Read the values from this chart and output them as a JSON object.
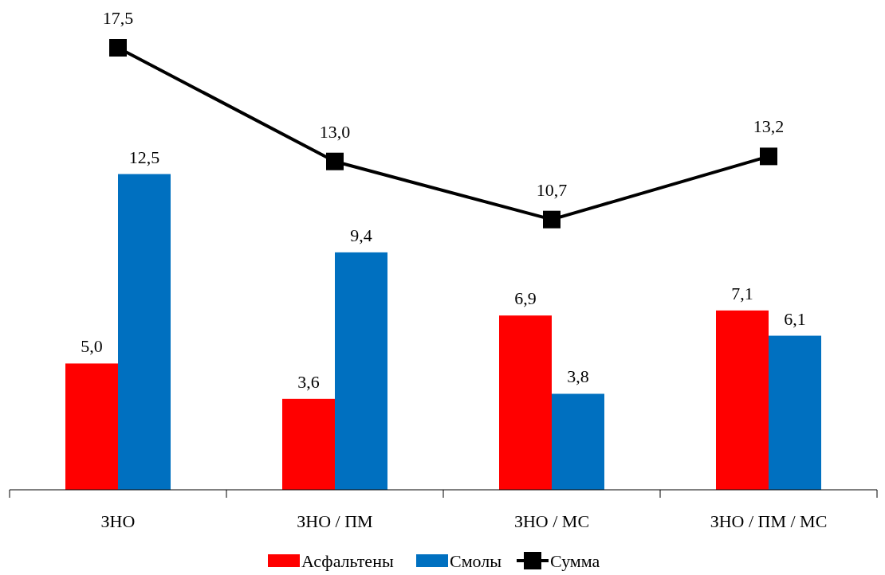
{
  "chart_data": {
    "type": "bar",
    "categories": [
      "ЗНО",
      "ЗНО / ПМ",
      "ЗНО / МС",
      "ЗНО / ПМ / МС"
    ],
    "series": [
      {
        "name": "Асфальтены",
        "color": "#ff0000",
        "values": [
          5.0,
          3.6,
          6.9,
          7.1
        ],
        "value_labels": [
          "5,0",
          "3,6",
          "6,9",
          "7,1"
        ]
      },
      {
        "name": "Смолы",
        "color": "#0070c0",
        "values": [
          12.5,
          9.4,
          3.8,
          6.1
        ],
        "value_labels": [
          "12,5",
          "9,4",
          "3,8",
          "6,1"
        ]
      },
      {
        "name": "Сумма",
        "type": "line",
        "color": "#000000",
        "marker": "square",
        "values": [
          17.5,
          13.0,
          10.7,
          13.2
        ],
        "value_labels": [
          "17,5",
          "13,0",
          "10,7",
          "13,2"
        ]
      }
    ],
    "legend": "bottom"
  }
}
